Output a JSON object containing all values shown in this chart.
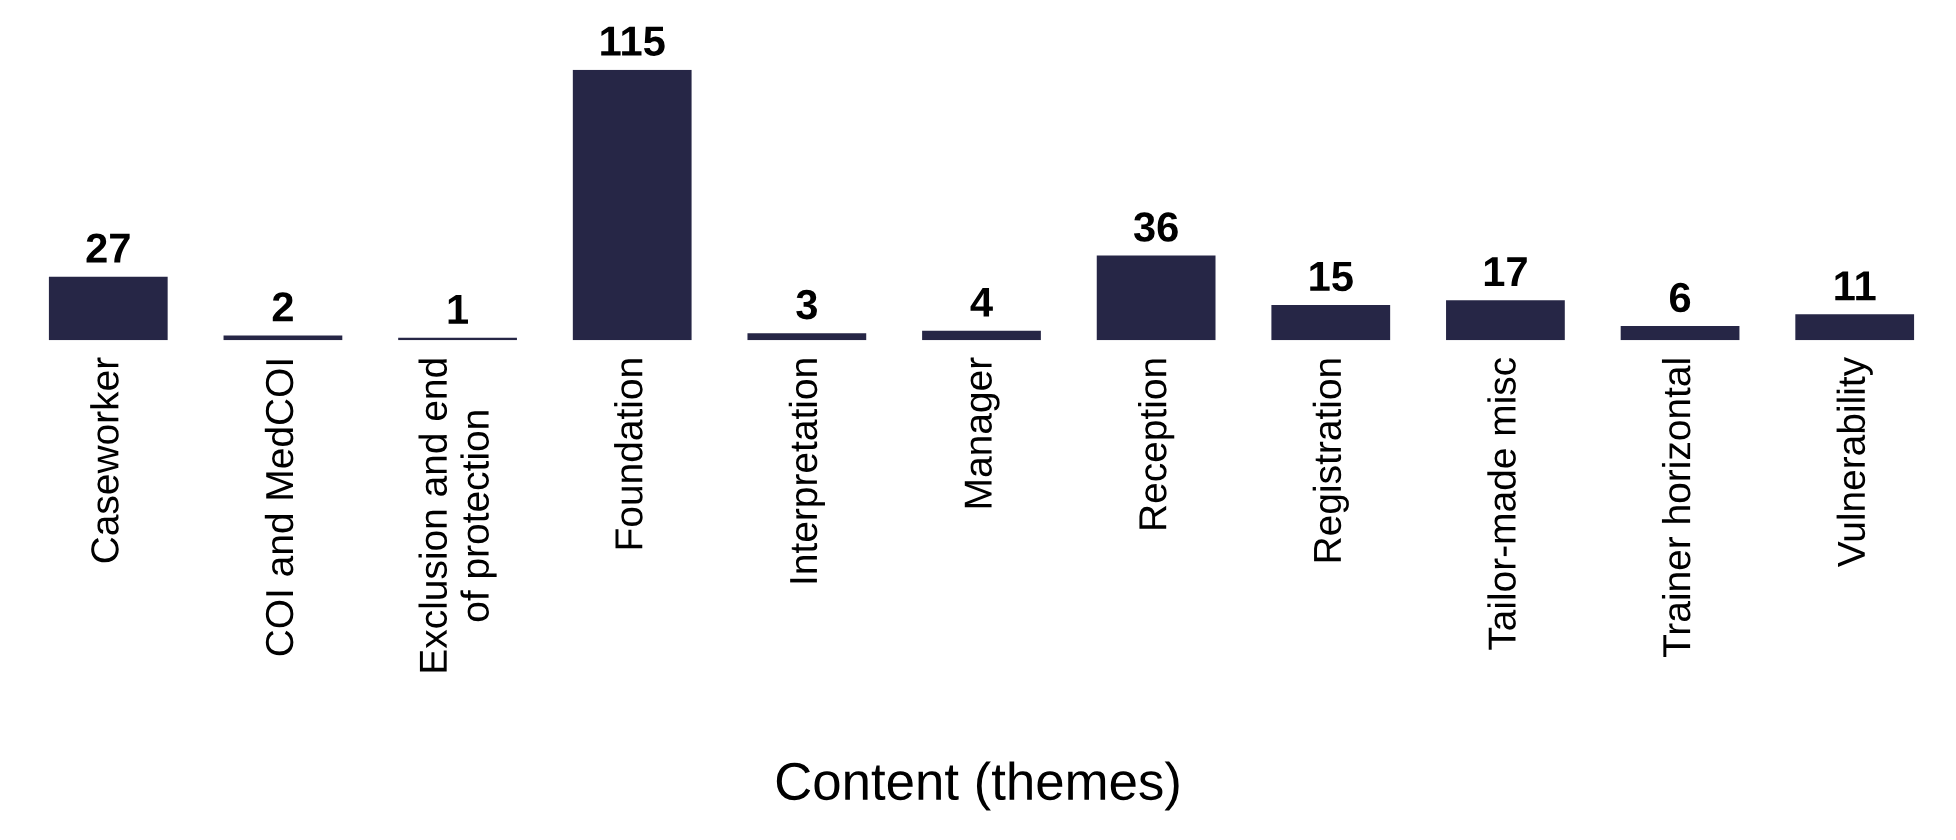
{
  "chart_data": {
    "type": "bar",
    "xlabel": "Content (themes)",
    "categories": [
      "Caseworker",
      "COI and MedCOI",
      "Exclusion and end\nof protection",
      "Foundation",
      "Interpretation",
      "Manager",
      "Reception",
      "Registration",
      "Tailor-made misc",
      "Trainer horizontal",
      "Vulnerability"
    ],
    "values": [
      27,
      2,
      1,
      115,
      3,
      4,
      36,
      15,
      17,
      6,
      11
    ],
    "color": "#262646",
    "data_labels": true,
    "grid": false,
    "legend": false
  }
}
